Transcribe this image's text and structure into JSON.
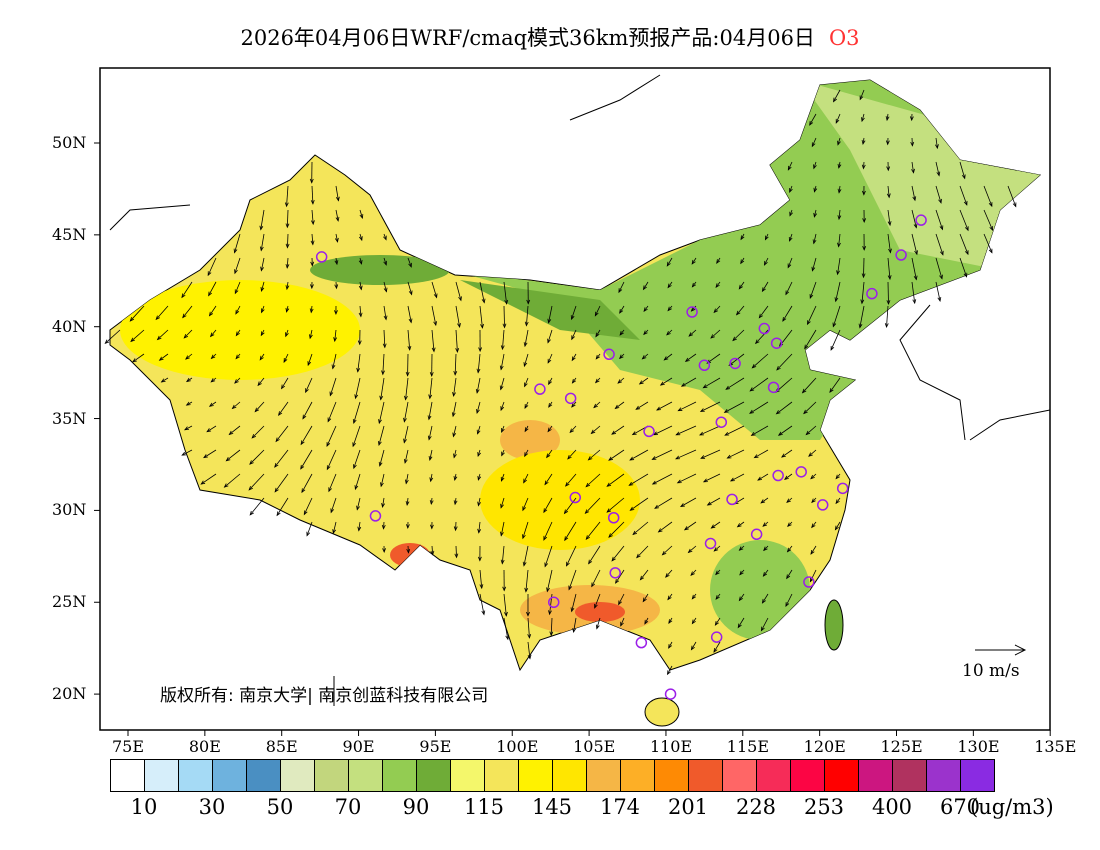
{
  "title": {
    "text": "2026年04月06日WRF/cmaq模式36km预报产品:04月06日",
    "species": "O3",
    "species_color": "#ff3333"
  },
  "lon_ticks": [
    "75E",
    "80E",
    "85E",
    "90E",
    "95E",
    "100E",
    "105E",
    "110E",
    "115E",
    "120E",
    "125E",
    "130E",
    "135E"
  ],
  "lat_ticks": [
    "50N",
    "45N",
    "40N",
    "35N",
    "30N",
    "25N",
    "20N"
  ],
  "colorbar": {
    "colors": [
      "#ffffff",
      "#d6eefa",
      "#a5daf5",
      "#6eb2de",
      "#4a8fc2",
      "#e0eabf",
      "#c2d67d",
      "#c4e07f",
      "#93cc52",
      "#6fac37",
      "#f4f76b",
      "#f4e55a",
      "#fff200",
      "#ffe600",
      "#f5b646",
      "#fdaf26",
      "#fe8a04",
      "#f05a2b",
      "#ff6666",
      "#f62c58",
      "#fc0544",
      "#ff0000",
      "#cc1680",
      "#b0325f",
      "#9b33cc",
      "#8a2be2"
    ],
    "labels": [
      "10",
      "30",
      "50",
      "70",
      "90",
      "115",
      "145",
      "174",
      "201",
      "228",
      "253",
      "400",
      "670"
    ],
    "unit": "(ug/m3)"
  },
  "copyright": "版权所有: 南京大学| 南京创蓝科技有限公司",
  "wind_scale": "10 m/s"
}
